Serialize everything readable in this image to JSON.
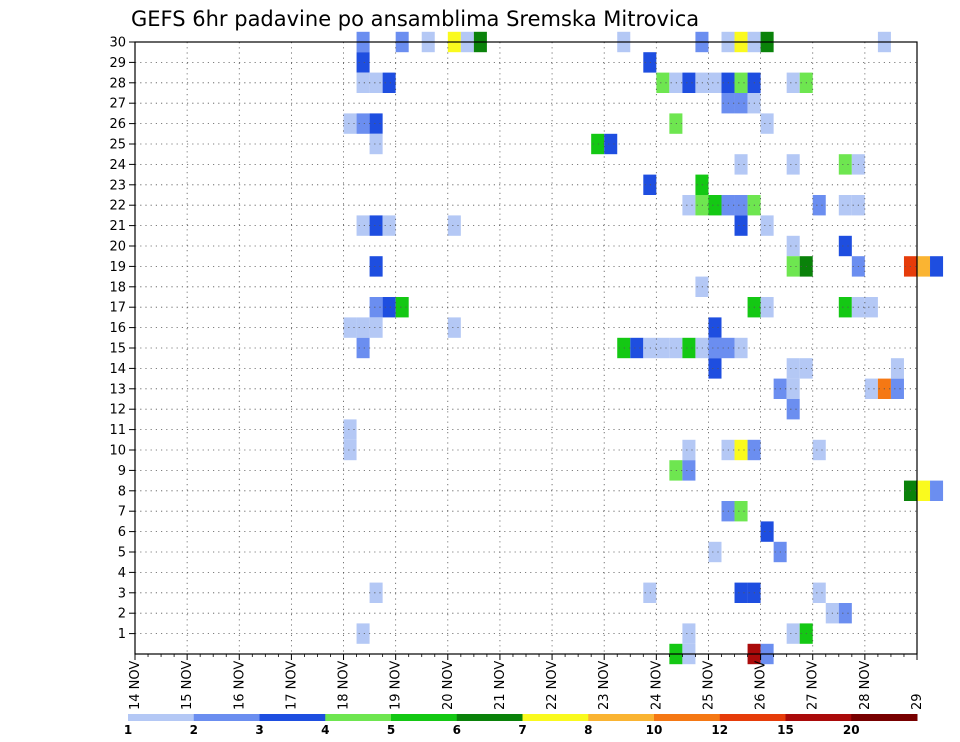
{
  "chart_data": {
    "type": "heatmap",
    "title": "GEFS 6hr padavine po ansamblima Sremska Mitrovica",
    "x_tick_labels": [
      "14 NOV",
      "15 NOV",
      "16 NOV",
      "17 NOV",
      "18 NOV",
      "19 NOV",
      "20 NOV",
      "21 NOV",
      "22 NOV",
      "23 NOV",
      "24 NOV",
      "25 NOV",
      "26 NOV",
      "27 NOV",
      "28 NOV",
      "29"
    ],
    "x_range_days": [
      0,
      15
    ],
    "y_tick_labels": [
      "1",
      "2",
      "3",
      "4",
      "5",
      "6",
      "7",
      "8",
      "9",
      "10",
      "11",
      "12",
      "13",
      "14",
      "15",
      "16",
      "17",
      "18",
      "19",
      "20",
      "21",
      "22",
      "23",
      "24",
      "25",
      "26",
      "27",
      "28",
      "29",
      "30"
    ],
    "y_range": [
      0,
      30
    ],
    "grid": true,
    "legend_position": "bottom",
    "legend": {
      "bins": [
        {
          "color": "#b4c8f5"
        },
        {
          "color": "#6b8ef0"
        },
        {
          "color": "#1e4ee0"
        },
        {
          "color": "#6ee650"
        },
        {
          "color": "#14c814"
        },
        {
          "color": "#0a820a"
        },
        {
          "color": "#fafa1e"
        },
        {
          "color": "#fab432"
        },
        {
          "color": "#f57814"
        },
        {
          "color": "#e63c0a"
        },
        {
          "color": "#aa0a0a"
        },
        {
          "color": "#780000"
        }
      ],
      "labels": [
        "1",
        "2",
        "3",
        "4",
        "5",
        "6",
        "7",
        "8",
        "10",
        "12",
        "15",
        "20"
      ]
    },
    "cells": [
      [
        4.25,
        30,
        "#6b8ef0"
      ],
      [
        5.0,
        30,
        "#6b8ef0"
      ],
      [
        5.5,
        30,
        "#b4c8f5"
      ],
      [
        6.0,
        30,
        "#fafa1e"
      ],
      [
        6.25,
        30,
        "#b4c8f5"
      ],
      [
        6.5,
        30,
        "#0a820a"
      ],
      [
        9.25,
        30,
        "#b4c8f5"
      ],
      [
        10.75,
        30,
        "#6b8ef0"
      ],
      [
        11.25,
        30,
        "#b4c8f5"
      ],
      [
        11.5,
        30,
        "#fafa1e"
      ],
      [
        11.75,
        30,
        "#b4c8f5"
      ],
      [
        12.0,
        30,
        "#0a820a"
      ],
      [
        14.25,
        30,
        "#b4c8f5"
      ],
      [
        4.25,
        29,
        "#1e4ee0"
      ],
      [
        9.75,
        29,
        "#1e4ee0"
      ],
      [
        4.25,
        28,
        "#b4c8f5"
      ],
      [
        4.5,
        28,
        "#b4c8f5"
      ],
      [
        4.75,
        28,
        "#1e4ee0"
      ],
      [
        10.0,
        28,
        "#6ee650"
      ],
      [
        10.25,
        28,
        "#b4c8f5"
      ],
      [
        10.5,
        28,
        "#1e4ee0"
      ],
      [
        10.75,
        28,
        "#b4c8f5"
      ],
      [
        11.0,
        28,
        "#b4c8f5"
      ],
      [
        11.25,
        28,
        "#1e4ee0"
      ],
      [
        11.5,
        28,
        "#6ee650"
      ],
      [
        11.75,
        28,
        "#1e4ee0"
      ],
      [
        12.5,
        28,
        "#b4c8f5"
      ],
      [
        12.75,
        28,
        "#6ee650"
      ],
      [
        11.25,
        27,
        "#6b8ef0"
      ],
      [
        11.5,
        27,
        "#6b8ef0"
      ],
      [
        11.75,
        27,
        "#b4c8f5"
      ],
      [
        4.0,
        26,
        "#b4c8f5"
      ],
      [
        4.25,
        26,
        "#6b8ef0"
      ],
      [
        4.5,
        26,
        "#1e4ee0"
      ],
      [
        10.25,
        26,
        "#6ee650"
      ],
      [
        12.0,
        26,
        "#b4c8f5"
      ],
      [
        4.5,
        25,
        "#b4c8f5"
      ],
      [
        8.75,
        25,
        "#14c814"
      ],
      [
        9.0,
        25,
        "#1e4ee0"
      ],
      [
        11.5,
        24,
        "#b4c8f5"
      ],
      [
        12.5,
        24,
        "#b4c8f5"
      ],
      [
        13.5,
        24,
        "#6ee650"
      ],
      [
        13.75,
        24,
        "#b4c8f5"
      ],
      [
        9.75,
        23,
        "#1e4ee0"
      ],
      [
        10.75,
        23,
        "#14c814"
      ],
      [
        10.5,
        22,
        "#b4c8f5"
      ],
      [
        10.75,
        22,
        "#6ee650"
      ],
      [
        11.0,
        22,
        "#14c814"
      ],
      [
        11.25,
        22,
        "#6b8ef0"
      ],
      [
        11.5,
        22,
        "#6b8ef0"
      ],
      [
        11.75,
        22,
        "#6ee650"
      ],
      [
        13.0,
        22,
        "#6b8ef0"
      ],
      [
        13.5,
        22,
        "#b4c8f5"
      ],
      [
        13.75,
        22,
        "#b4c8f5"
      ],
      [
        4.25,
        21,
        "#b4c8f5"
      ],
      [
        4.5,
        21,
        "#1e4ee0"
      ],
      [
        4.75,
        21,
        "#b4c8f5"
      ],
      [
        6.0,
        21,
        "#b4c8f5"
      ],
      [
        11.5,
        21,
        "#1e4ee0"
      ],
      [
        12.0,
        21,
        "#b4c8f5"
      ],
      [
        12.5,
        20,
        "#b4c8f5"
      ],
      [
        13.5,
        20,
        "#1e4ee0"
      ],
      [
        12.5,
        19,
        "#6ee650"
      ],
      [
        12.75,
        19,
        "#0a820a"
      ],
      [
        13.75,
        19,
        "#6b8ef0"
      ],
      [
        4.5,
        19,
        "#1e4ee0"
      ],
      [
        14.75,
        19,
        "#e63c0a"
      ],
      [
        15.0,
        19,
        "#fab432"
      ],
      [
        15.25,
        19,
        "#1e4ee0"
      ],
      [
        10.75,
        18,
        "#b4c8f5"
      ],
      [
        4.5,
        17,
        "#6b8ef0"
      ],
      [
        4.75,
        17,
        "#1e4ee0"
      ],
      [
        5.0,
        17,
        "#14c814"
      ],
      [
        11.75,
        17,
        "#14c814"
      ],
      [
        12.0,
        17,
        "#b4c8f5"
      ],
      [
        13.5,
        17,
        "#14c814"
      ],
      [
        13.75,
        17,
        "#b4c8f5"
      ],
      [
        14.0,
        17,
        "#b4c8f5"
      ],
      [
        4.0,
        16,
        "#b4c8f5"
      ],
      [
        4.25,
        16,
        "#b4c8f5"
      ],
      [
        4.5,
        16,
        "#b4c8f5"
      ],
      [
        6.0,
        16,
        "#b4c8f5"
      ],
      [
        11.0,
        16,
        "#1e4ee0"
      ],
      [
        4.25,
        15,
        "#6b8ef0"
      ],
      [
        9.25,
        15,
        "#14c814"
      ],
      [
        9.5,
        15,
        "#1e4ee0"
      ],
      [
        9.75,
        15,
        "#b4c8f5"
      ],
      [
        10.0,
        15,
        "#b4c8f5"
      ],
      [
        10.25,
        15,
        "#b4c8f5"
      ],
      [
        10.5,
        15,
        "#14c814"
      ],
      [
        10.75,
        15,
        "#b4c8f5"
      ],
      [
        11.0,
        15,
        "#6b8ef0"
      ],
      [
        11.25,
        15,
        "#6b8ef0"
      ],
      [
        11.5,
        15,
        "#b4c8f5"
      ],
      [
        11.0,
        14,
        "#1e4ee0"
      ],
      [
        12.5,
        14,
        "#b4c8f5"
      ],
      [
        12.75,
        14,
        "#b4c8f5"
      ],
      [
        12.25,
        13,
        "#6b8ef0"
      ],
      [
        12.5,
        13,
        "#b4c8f5"
      ],
      [
        14.0,
        13,
        "#b4c8f5"
      ],
      [
        14.25,
        13,
        "#f57814"
      ],
      [
        14.5,
        13,
        "#6b8ef0"
      ],
      [
        14.5,
        14,
        "#b4c8f5"
      ],
      [
        12.5,
        12,
        "#6b8ef0"
      ],
      [
        4.0,
        11,
        "#b4c8f5"
      ],
      [
        4.0,
        10,
        "#b4c8f5"
      ],
      [
        10.5,
        10,
        "#b4c8f5"
      ],
      [
        11.25,
        10,
        "#b4c8f5"
      ],
      [
        11.5,
        10,
        "#fafa1e"
      ],
      [
        11.75,
        10,
        "#6b8ef0"
      ],
      [
        13.0,
        10,
        "#b4c8f5"
      ],
      [
        10.25,
        9,
        "#6ee650"
      ],
      [
        10.5,
        9,
        "#6b8ef0"
      ],
      [
        14.75,
        8,
        "#0a820a"
      ],
      [
        15.0,
        8,
        "#fafa1e"
      ],
      [
        15.25,
        8,
        "#6b8ef0"
      ],
      [
        11.25,
        7,
        "#6b8ef0"
      ],
      [
        11.5,
        7,
        "#6ee650"
      ],
      [
        12.0,
        6,
        "#1e4ee0"
      ],
      [
        12.25,
        5,
        "#6b8ef0"
      ],
      [
        11.0,
        5,
        "#b4c8f5"
      ],
      [
        4.5,
        3,
        "#b4c8f5"
      ],
      [
        9.75,
        3,
        "#b4c8f5"
      ],
      [
        11.5,
        3,
        "#1e4ee0"
      ],
      [
        11.75,
        3,
        "#1e4ee0"
      ],
      [
        13.0,
        3,
        "#b4c8f5"
      ],
      [
        13.25,
        2,
        "#b4c8f5"
      ],
      [
        13.5,
        2,
        "#6b8ef0"
      ],
      [
        4.25,
        1,
        "#b4c8f5"
      ],
      [
        10.5,
        1,
        "#b4c8f5"
      ],
      [
        12.5,
        1,
        "#b4c8f5"
      ],
      [
        12.75,
        1,
        "#14c814"
      ],
      [
        10.25,
        0,
        "#14c814"
      ],
      [
        10.5,
        0,
        "#b4c8f5"
      ],
      [
        11.75,
        0,
        "#aa0a0a"
      ],
      [
        12.0,
        0,
        "#6b8ef0"
      ]
    ]
  }
}
